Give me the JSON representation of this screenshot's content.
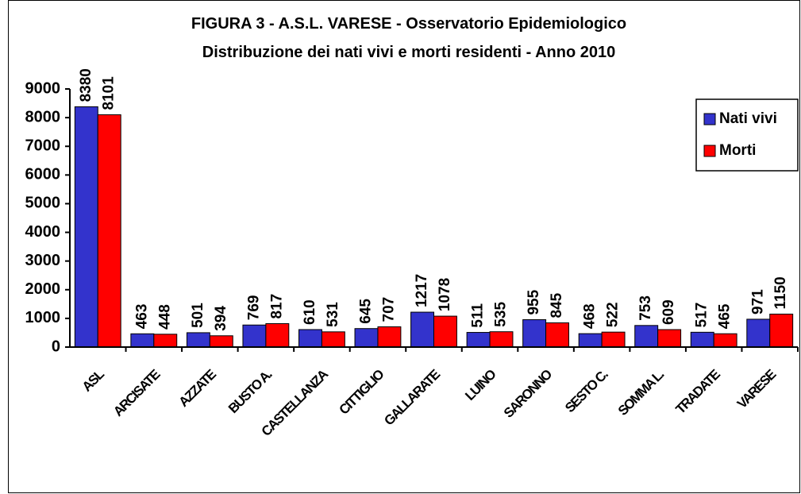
{
  "chart_data": {
    "type": "bar",
    "title": "FIGURA 3 - A.S.L.  VARESE - Osservatorio Epidemiologico",
    "subtitle": "Distribuzione dei nati vivi e morti residenti - Anno 2010",
    "categories": [
      "ASL",
      "ARCISATE",
      "AZZATE",
      "BUSTO A.",
      "CASTELLANZA",
      "CITTIGLIO",
      "GALLARATE",
      "LUINO",
      "SARONNO",
      "SESTO C.",
      "SOMMA L.",
      "TRADATE",
      "VARESE"
    ],
    "series": [
      {
        "name": "Nati vivi",
        "color": "#3333cc",
        "values": [
          8380,
          463,
          501,
          769,
          610,
          645,
          1217,
          511,
          955,
          468,
          753,
          517,
          971
        ]
      },
      {
        "name": "Morti",
        "color": "#ff0000",
        "values": [
          8101,
          448,
          394,
          817,
          531,
          707,
          1078,
          535,
          845,
          522,
          609,
          465,
          1150
        ]
      }
    ],
    "ylim": [
      0,
      9000
    ],
    "yticks": [
      0,
      1000,
      2000,
      3000,
      4000,
      5000,
      6000,
      7000,
      8000,
      9000
    ],
    "grid": false,
    "legend": "right"
  }
}
